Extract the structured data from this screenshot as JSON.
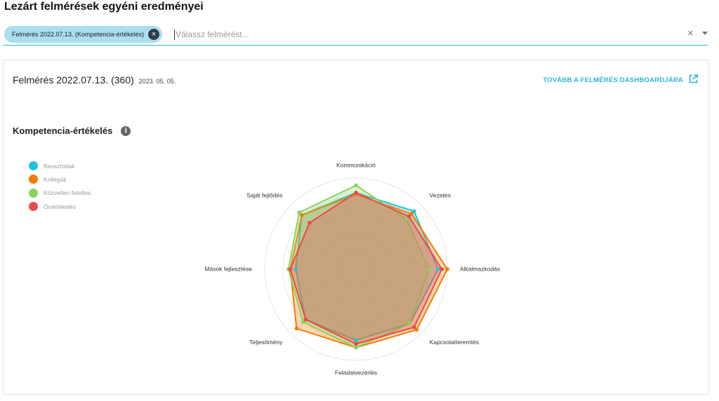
{
  "page": {
    "title": "Lezárt felmérések egyéni eredményei"
  },
  "selector": {
    "chip_label": "Felmérés 2022.07.13. (Kompetencia-értékelés)",
    "placeholder": "Válassz felmérést...",
    "clear_symbol": "×"
  },
  "card": {
    "title": "Felmérés 2022.07.13. (360)",
    "date": "2023. 05. 05.",
    "link_label": "TOVÁBB A FELMÉRÉS DASHBOARDJÁRA"
  },
  "section": {
    "title": "Kompetencia-értékelés",
    "info_symbol": "i"
  },
  "chart_data": {
    "type": "radar",
    "title": "",
    "categories": [
      "Kommunikáció",
      "Vezetés",
      "Alkalmazkodás",
      "Kapcsolatteremtés",
      "Feladatvezérlés",
      "Teljesítmény",
      "Mások fejlesztése",
      "Saját fejlődés"
    ],
    "rlim": [
      0,
      5
    ],
    "grid": true,
    "legend": "top-left",
    "series": [
      {
        "name": "Beosztottak",
        "color": "#1ec3e0",
        "values": [
          4.2,
          4.5,
          4.5,
          4.2,
          3.9,
          3.9,
          3.3,
          4.2
        ]
      },
      {
        "name": "Kollégák",
        "color": "#f57c00",
        "values": [
          4.1,
          4.3,
          5.0,
          4.7,
          4.3,
          4.6,
          3.6,
          4.2
        ]
      },
      {
        "name": "Közvetlen felettes",
        "color": "#8bd15f",
        "values": [
          4.6,
          3.9,
          4.0,
          4.2,
          4.3,
          4.1,
          3.7,
          4.4
        ]
      },
      {
        "name": "Önértékelés",
        "color": "#ec4a4a",
        "values": [
          4.2,
          4.1,
          4.7,
          4.5,
          4.1,
          3.9,
          3.6,
          3.6
        ]
      }
    ]
  }
}
